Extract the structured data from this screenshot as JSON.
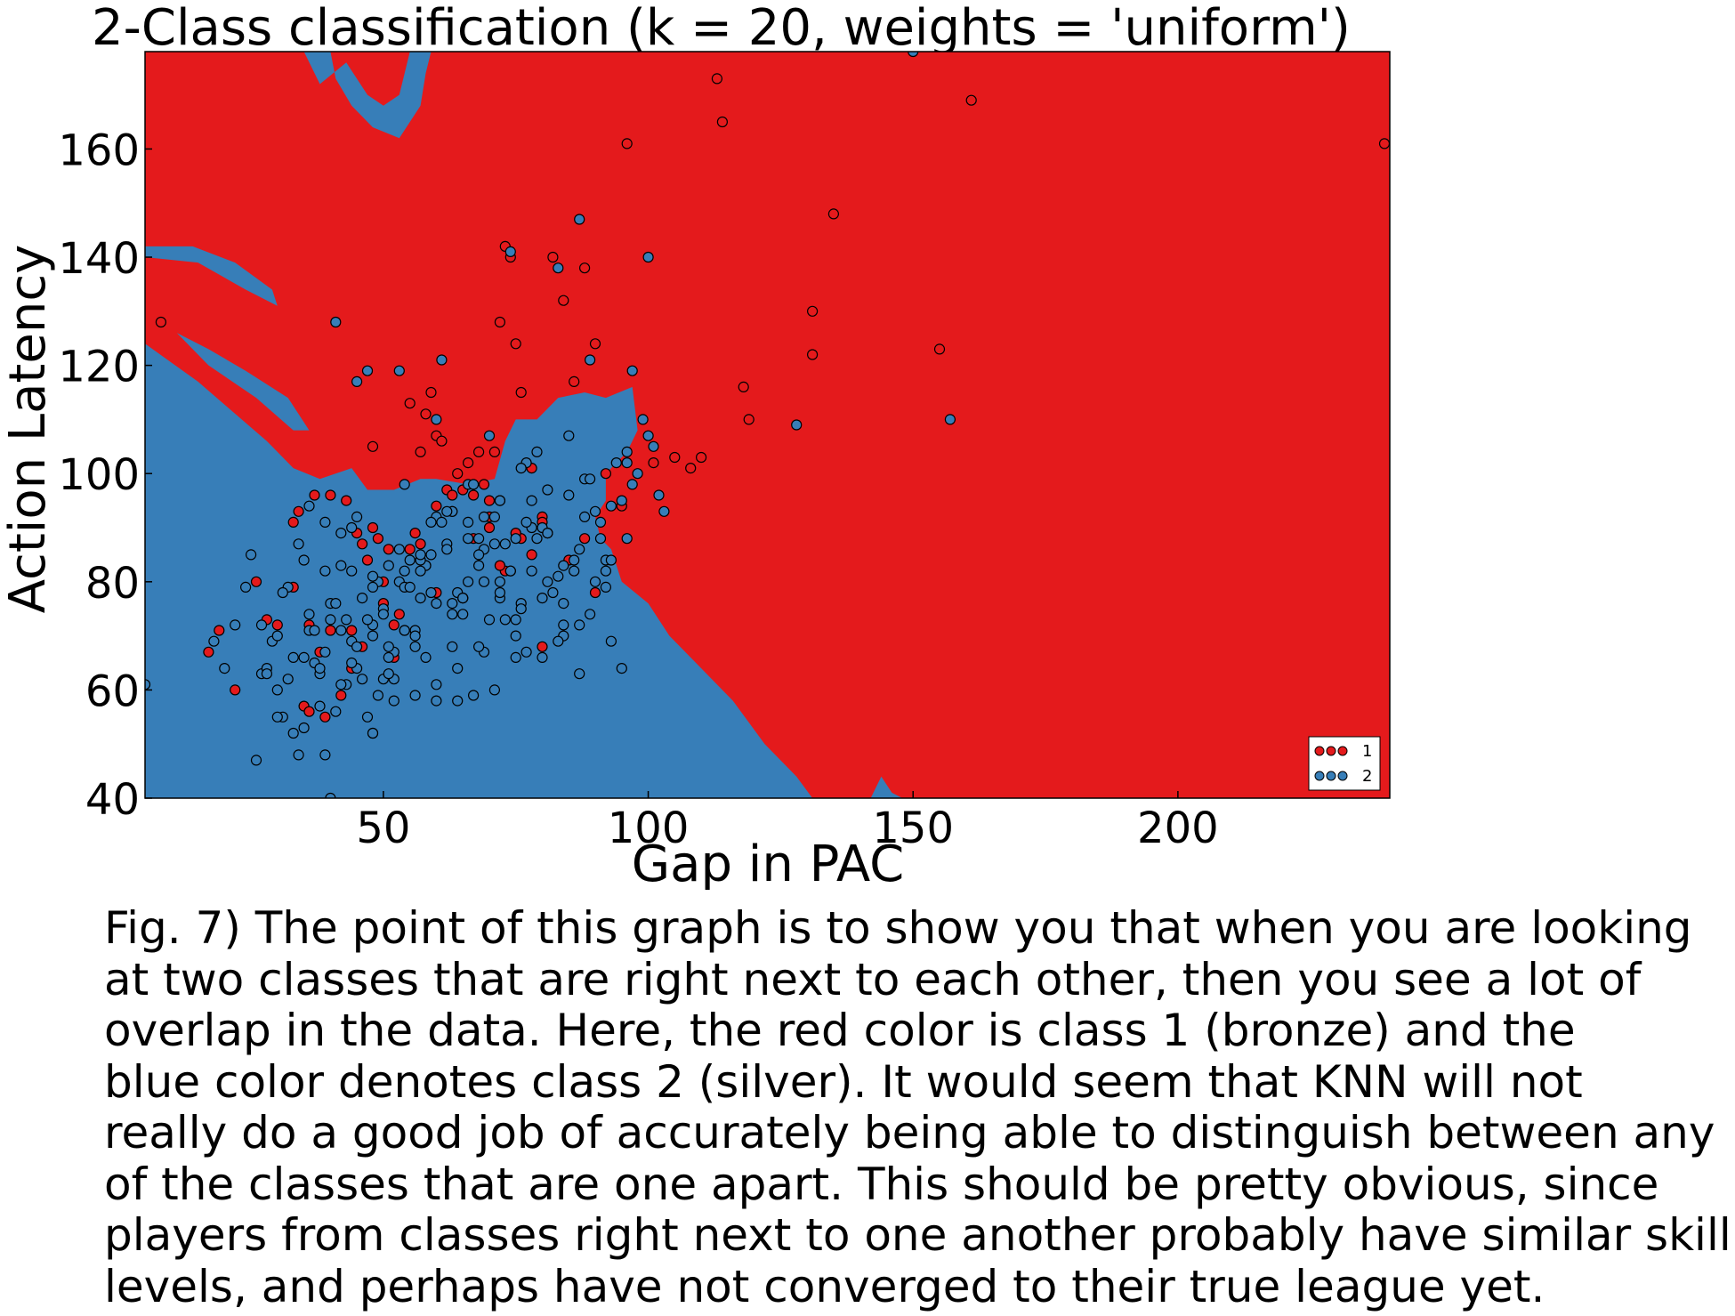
{
  "chart_data": {
    "type": "scatter",
    "title": "2-Class classification (k = 20, weights = 'uniform')",
    "xlabel": "Gap in PAC",
    "ylabel": "Action Latency",
    "xlim": [
      5,
      240
    ],
    "ylim": [
      40,
      178
    ],
    "xticks": [
      50,
      100,
      150,
      200
    ],
    "yticks": [
      40,
      60,
      80,
      100,
      120,
      140,
      160
    ],
    "grid": false,
    "legend_position": "lower-right",
    "region_colors": {
      "1": "#e41a1c",
      "2": "#377eb8"
    },
    "decision_regions": [
      {
        "class": "2",
        "polygon": [
          [
            5,
            40
          ],
          [
            5,
            124
          ],
          [
            15,
            117
          ],
          [
            28,
            106
          ],
          [
            33,
            101
          ],
          [
            38,
            99
          ],
          [
            44,
            101
          ],
          [
            47,
            97
          ],
          [
            52,
            97
          ],
          [
            57,
            99
          ],
          [
            60,
            99
          ],
          [
            66,
            98
          ],
          [
            71,
            99
          ],
          [
            73,
            106
          ],
          [
            75,
            110
          ],
          [
            79,
            110
          ],
          [
            83,
            114
          ],
          [
            88,
            115
          ],
          [
            92,
            114
          ],
          [
            97,
            116
          ],
          [
            98,
            108
          ],
          [
            96,
            104
          ],
          [
            92,
            100
          ],
          [
            92,
            95
          ],
          [
            90,
            92
          ],
          [
            91,
            88
          ],
          [
            93,
            86
          ],
          [
            95,
            80
          ],
          [
            100,
            76
          ],
          [
            104,
            70
          ],
          [
            108,
            66
          ],
          [
            116,
            58
          ],
          [
            122,
            50
          ],
          [
            128,
            44
          ],
          [
            131,
            40
          ]
        ]
      },
      {
        "class": "2",
        "polygon": [
          [
            5,
            142
          ],
          [
            14,
            142
          ],
          [
            22,
            139
          ],
          [
            29,
            134
          ],
          [
            30,
            131
          ],
          [
            24,
            134
          ],
          [
            15,
            139
          ],
          [
            5,
            140
          ]
        ]
      },
      {
        "class": "2",
        "polygon": [
          [
            11,
            126
          ],
          [
            17,
            123
          ],
          [
            24,
            119
          ],
          [
            32,
            114
          ],
          [
            36,
            108
          ],
          [
            33,
            108
          ],
          [
            26,
            114
          ],
          [
            17,
            120
          ]
        ]
      },
      {
        "class": "2",
        "polygon": [
          [
            32,
            178
          ],
          [
            40,
            178
          ],
          [
            41,
            173
          ],
          [
            44,
            168
          ],
          [
            48,
            164
          ],
          [
            53,
            162
          ],
          [
            57,
            168
          ],
          [
            58,
            174
          ],
          [
            59,
            178
          ],
          [
            55,
            178
          ],
          [
            53,
            170
          ],
          [
            50,
            168
          ],
          [
            47,
            170
          ],
          [
            43,
            176
          ],
          [
            38,
            172
          ],
          [
            35,
            178
          ]
        ]
      },
      {
        "class": "2",
        "polygon": [
          [
            142,
            40
          ],
          [
            144,
            44
          ],
          [
            146,
            41
          ],
          [
            148,
            40
          ]
        ]
      }
    ],
    "series": [
      {
        "name": "1",
        "color": "#e41a1c",
        "x": [
          8,
          17,
          19,
          22,
          26,
          28,
          30,
          33,
          34,
          35,
          36,
          37,
          38,
          39,
          40,
          42,
          43,
          44,
          45,
          46,
          47,
          48,
          48,
          49,
          50,
          51,
          52,
          53,
          54,
          55,
          56,
          57,
          58,
          59,
          60,
          61,
          62,
          63,
          64,
          66,
          67,
          68,
          69,
          70,
          71,
          72,
          73,
          74,
          75,
          76,
          78,
          80,
          82,
          84,
          86,
          88,
          90,
          92,
          96,
          101,
          105,
          108,
          110,
          113,
          114,
          118,
          119,
          131,
          131,
          135,
          155,
          161,
          239,
          57,
          60,
          63,
          67,
          70,
          73,
          76,
          80,
          85,
          90,
          33,
          40,
          46,
          50,
          55,
          60,
          65,
          70,
          75,
          80,
          48,
          52,
          36,
          44,
          58,
          65,
          72,
          78,
          88,
          95
        ],
        "y": [
          128,
          67,
          71,
          60,
          80,
          73,
          72,
          91,
          93,
          57,
          72,
          96,
          67,
          55,
          71,
          59,
          95,
          64,
          89,
          68,
          84,
          90,
          105,
          88,
          80,
          86,
          72,
          74,
          71,
          113,
          89,
          87,
          111,
          115,
          107,
          106,
          97,
          93,
          100,
          102,
          96,
          104,
          98,
          95,
          104,
          128,
          142,
          140,
          124,
          115,
          85,
          68,
          140,
          132,
          117,
          138,
          124,
          100,
          161,
          102,
          103,
          101,
          103,
          173,
          165,
          116,
          110,
          130,
          122,
          148,
          123,
          169,
          161,
          104,
          94,
          96,
          88,
          90,
          82,
          88,
          92,
          84,
          78,
          79,
          96,
          87,
          76,
          86,
          78,
          97,
          92,
          89,
          91,
          52,
          66,
          56,
          71,
          83,
          77,
          83,
          101,
          88,
          94
        ]
      },
      {
        "name": "2",
        "color": "#377eb8",
        "x": [
          5,
          18,
          20,
          22,
          24,
          26,
          27,
          28,
          29,
          30,
          31,
          32,
          33,
          34,
          35,
          36,
          37,
          38,
          39,
          40,
          41,
          42,
          43,
          44,
          45,
          46,
          47,
          48,
          49,
          50,
          51,
          52,
          53,
          54,
          55,
          56,
          57,
          58,
          59,
          60,
          61,
          62,
          63,
          64,
          65,
          66,
          67,
          68,
          69,
          70,
          71,
          72,
          73,
          74,
          75,
          76,
          77,
          78,
          79,
          80,
          81,
          82,
          83,
          84,
          85,
          86,
          87,
          88,
          89,
          90,
          91,
          92,
          93,
          94,
          95,
          96,
          97,
          98,
          100,
          102,
          103,
          128,
          150,
          157,
          25,
          28,
          30,
          32,
          34,
          36,
          38,
          40,
          42,
          44,
          46,
          48,
          50,
          52,
          54,
          56,
          58,
          60,
          62,
          64,
          66,
          68,
          70,
          72,
          74,
          76,
          30,
          33,
          36,
          39,
          42,
          45,
          48,
          51,
          54,
          57,
          60,
          63,
          66,
          69,
          72,
          75,
          78,
          81,
          84,
          87,
          35,
          38,
          41,
          44,
          47,
          50,
          53,
          56,
          59,
          62,
          65,
          68,
          71,
          74,
          77,
          80,
          83,
          86,
          89,
          92,
          39,
          42,
          45,
          48,
          51,
          54,
          57,
          60,
          63,
          66,
          69,
          72,
          75,
          78,
          81,
          84,
          87,
          90,
          93,
          96,
          40,
          44,
          48,
          52,
          56,
          60,
          64,
          68,
          72,
          76,
          80,
          84,
          88,
          92,
          96,
          100,
          27,
          31,
          35,
          39,
          43,
          47,
          51,
          55,
          59,
          63,
          67,
          71,
          75,
          79,
          83,
          87,
          91,
          95,
          99,
          37,
          41,
          45,
          49,
          53,
          57,
          61,
          65,
          69,
          73,
          77,
          81,
          85,
          89,
          93,
          97,
          101
        ],
        "y": [
          61,
          69,
          64,
          72,
          79,
          47,
          63,
          64,
          69,
          60,
          55,
          62,
          52,
          48,
          66,
          94,
          65,
          57,
          91,
          40,
          128,
          83,
          61,
          90,
          117,
          62,
          119,
          72,
          80,
          75,
          83,
          67,
          119,
          98,
          84,
          71,
          77,
          83,
          85,
          110,
          121,
          87,
          93,
          78,
          77,
          98,
          59,
          83,
          86,
          107,
          92,
          95,
          87,
          141,
          88,
          76,
          102,
          90,
          88,
          66,
          97,
          78,
          138,
          83,
          107,
          82,
          147,
          99,
          121,
          80,
          91,
          82,
          69,
          102,
          64,
          88,
          119,
          100,
          140,
          96,
          93,
          109,
          178,
          110,
          85,
          63,
          70,
          79,
          87,
          71,
          63,
          76,
          89,
          82,
          77,
          70,
          74,
          62,
          82,
          59,
          66,
          76,
          93,
          58,
          80,
          88,
          73,
          95,
          82,
          75,
          55,
          66,
          74,
          82,
          61,
          92,
          79,
          66,
          71,
          84,
          58,
          76,
          91,
          67,
          80,
          73,
          82,
          89,
          70,
          63,
          53,
          64,
          56,
          69,
          73,
          62,
          80,
          68,
          78,
          86,
          74,
          68,
          60,
          82,
          91,
          77,
          69,
          84,
          74,
          79,
          48,
          71,
          64,
          52,
          68,
          79,
          85,
          61,
          74,
          88,
          92,
          77,
          70,
          95,
          80,
          72,
          86,
          93,
          94,
          104,
          73,
          65,
          81,
          58,
          70,
          92,
          64,
          85,
          78,
          101,
          90,
          76,
          92,
          84,
          102,
          107,
          72,
          78,
          84,
          67,
          73,
          55,
          63,
          79,
          91,
          68,
          98,
          87,
          66,
          104,
          81,
          72,
          88,
          95,
          110,
          71,
          76,
          68,
          59,
          86,
          82,
          91,
          77,
          80,
          73,
          67,
          89,
          96,
          99,
          84,
          98,
          105
        ]
      }
    ],
    "legend": [
      "1",
      "2"
    ]
  },
  "caption": {
    "lines": [
      "Fig. 7) The point of this graph is to show you that when you are looking",
      "at two classes that are right next to each other, then you see a lot of",
      "overlap in the data. Here, the red color is class 1 (bronze) and the",
      "blue color denotes class 2 (silver). It would seem that KNN will not",
      "really do a good job of accurately being able to distinguish between any",
      "of the classes that are one apart. This should be pretty obvious, since",
      "players from classes right next to one another probably have similar skill",
      "levels, and perhaps have not converged to their true league yet."
    ]
  }
}
